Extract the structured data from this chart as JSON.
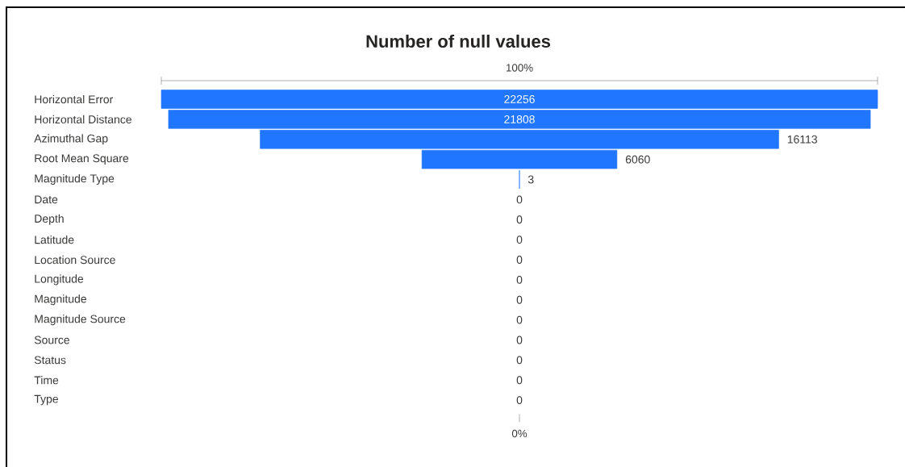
{
  "chart_data": {
    "type": "other",
    "title": "Number of null values",
    "categories": [
      "Horizontal Error",
      "Horizontal Distance",
      "Azimuthal Gap",
      "Root Mean Square",
      "Magnitude Type",
      "Date",
      "Depth",
      "Latitude",
      "Location Source",
      "Longitude",
      "Magnitude",
      "Magnitude Source",
      "Source",
      "Status",
      "Time",
      "Type"
    ],
    "values": [
      22256,
      21808,
      16113,
      6060,
      3,
      0,
      0,
      0,
      0,
      0,
      0,
      0,
      0,
      0,
      0,
      0
    ],
    "color": "#2176ff",
    "data_labels": true,
    "annotations": [
      "100%",
      "0%"
    ]
  }
}
